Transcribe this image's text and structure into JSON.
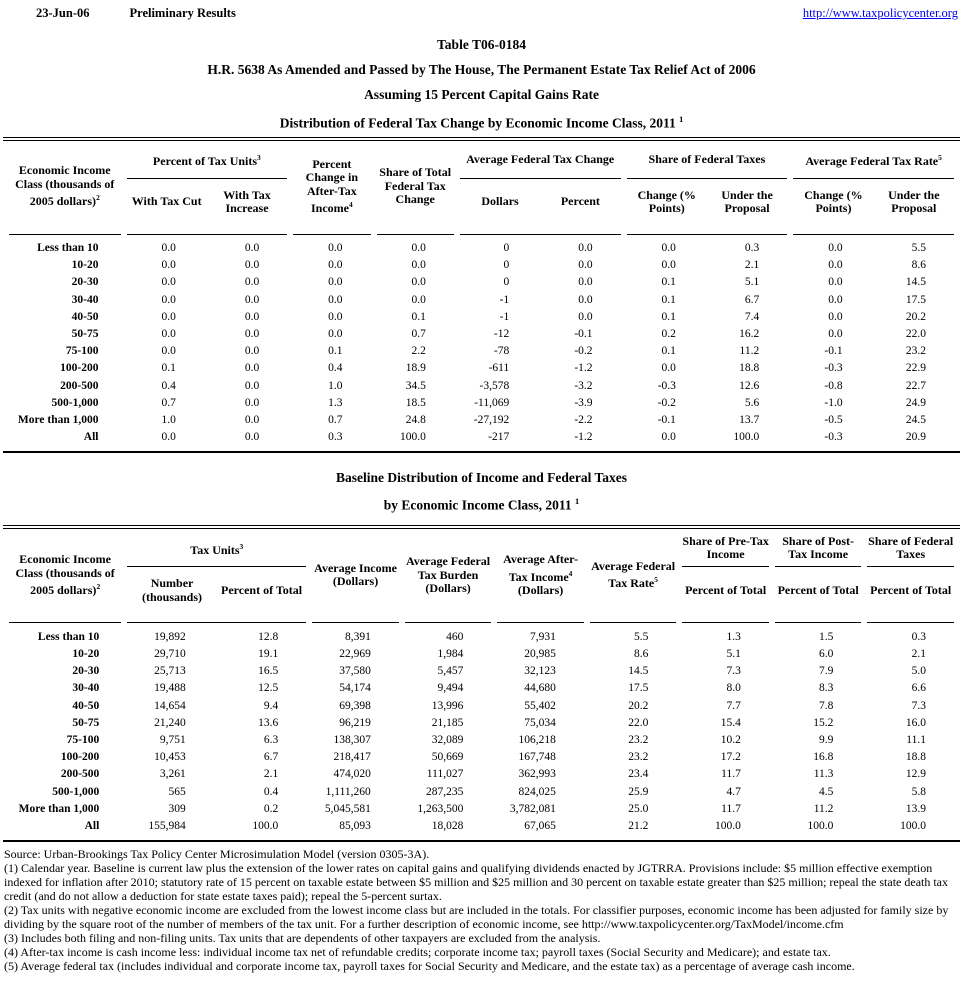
{
  "page": {
    "date": "23-Jun-06",
    "status": "Preliminary Results",
    "url": "http://www.taxpolicycenter.org"
  },
  "title": {
    "line1": "Table T06-0184",
    "line2": "H.R. 5638 As Amended and Passed by The House, The Permanent Estate Tax Relief Act of 2006",
    "line3": "Assuming 15 Percent Capital Gains Rate",
    "line4": {
      "pre": "Distribution of Federal Tax Change by Economic Income Class, 2011 ",
      "sup": "1"
    }
  },
  "table1": {
    "stub": {
      "pre": "Economic Income Class (thousands of 2005 dollars)",
      "sup": "2"
    },
    "groups": {
      "tax_units": {
        "label": {
          "pre": "Percent of Tax Units",
          "sup": "3"
        },
        "sub1": "With Tax Cut",
        "sub2": "With Tax Increase"
      },
      "pct_change": {
        "pre": "Percent Change in After-Tax Income",
        "sup": "4"
      },
      "share_total": "Share of Total Federal Tax Change",
      "avg_change": {
        "label": "Average Federal Tax Change",
        "sub1": "Dollars",
        "sub2": "Percent"
      },
      "share_taxes": {
        "label": "Share of Federal Taxes",
        "sub1": "Change (% Points)",
        "sub2": "Under the Proposal"
      },
      "avg_rate": {
        "label": {
          "pre": "Average Federal Tax Rate",
          "sup": "5"
        },
        "sub1": "Change (% Points)",
        "sub2": "Under the Proposal"
      }
    },
    "rows": [
      {
        "label": "Less than 10",
        "values": [
          "0.0",
          "0.0",
          "0.0",
          "0.0",
          "0",
          "0.0",
          "0.0",
          "0.3",
          "0.0",
          "5.5"
        ]
      },
      {
        "label": "10-20",
        "values": [
          "0.0",
          "0.0",
          "0.0",
          "0.0",
          "0",
          "0.0",
          "0.0",
          "2.1",
          "0.0",
          "8.6"
        ]
      },
      {
        "label": "20-30",
        "values": [
          "0.0",
          "0.0",
          "0.0",
          "0.0",
          "0",
          "0.0",
          "0.1",
          "5.1",
          "0.0",
          "14.5"
        ]
      },
      {
        "label": "30-40",
        "values": [
          "0.0",
          "0.0",
          "0.0",
          "0.0",
          "-1",
          "0.0",
          "0.1",
          "6.7",
          "0.0",
          "17.5"
        ]
      },
      {
        "label": "40-50",
        "values": [
          "0.0",
          "0.0",
          "0.0",
          "0.1",
          "-1",
          "0.0",
          "0.1",
          "7.4",
          "0.0",
          "20.2"
        ]
      },
      {
        "label": "50-75",
        "values": [
          "0.0",
          "0.0",
          "0.0",
          "0.7",
          "-12",
          "-0.1",
          "0.2",
          "16.2",
          "0.0",
          "22.0"
        ]
      },
      {
        "label": "75-100",
        "values": [
          "0.0",
          "0.0",
          "0.1",
          "2.2",
          "-78",
          "-0.2",
          "0.1",
          "11.2",
          "-0.1",
          "23.2"
        ]
      },
      {
        "label": "100-200",
        "values": [
          "0.1",
          "0.0",
          "0.4",
          "18.9",
          "-611",
          "-1.2",
          "0.0",
          "18.8",
          "-0.3",
          "22.9"
        ]
      },
      {
        "label": "200-500",
        "values": [
          "0.4",
          "0.0",
          "1.0",
          "34.5",
          "-3,578",
          "-3.2",
          "-0.3",
          "12.6",
          "-0.8",
          "22.7"
        ]
      },
      {
        "label": "500-1,000",
        "values": [
          "0.7",
          "0.0",
          "1.3",
          "18.5",
          "-11,069",
          "-3.9",
          "-0.2",
          "5.6",
          "-1.0",
          "24.9"
        ]
      },
      {
        "label": "More than 1,000",
        "values": [
          "1.0",
          "0.0",
          "0.7",
          "24.8",
          "-27,192",
          "-2.2",
          "-0.1",
          "13.7",
          "-0.5",
          "24.5"
        ]
      },
      {
        "label": "All",
        "values": [
          "0.0",
          "0.0",
          "0.3",
          "100.0",
          "-217",
          "-1.2",
          "0.0",
          "100.0",
          "-0.3",
          "20.9"
        ]
      }
    ]
  },
  "table2_title": {
    "line1": "Baseline Distribution of Income and Federal Taxes",
    "line2": {
      "pre": "by Economic Income Class, 2011 ",
      "sup": "1"
    }
  },
  "table2": {
    "stub": {
      "pre": "Economic Income Class (thousands of 2005 dollars)",
      "sup": "2"
    },
    "groups": {
      "tax_units": {
        "label": {
          "pre": "Tax Units",
          "sup": "3"
        },
        "sub1": "Number (thousands)",
        "sub2": "Percent of Total"
      },
      "avg_income": "Average Income (Dollars)",
      "avg_burden": "Average Federal Tax Burden (Dollars)",
      "avg_after_tax": {
        "pre": "Average After-Tax Income",
        "sup": "4",
        "post": " (Dollars)"
      },
      "avg_rate": {
        "pre": "Average Federal Tax Rate",
        "sup": "5"
      },
      "share_pre": {
        "label": "Share of Pre-Tax Income",
        "sub1": "Percent of Total"
      },
      "share_post": {
        "label": "Share of Post-Tax Income",
        "sub1": "Percent of Total"
      },
      "share_fed": {
        "label": "Share of Federal Taxes",
        "sub1": "Percent of Total"
      }
    },
    "rows": [
      {
        "label": "Less than 10",
        "values": [
          "19,892",
          "12.8",
          "8,391",
          "460",
          "7,931",
          "5.5",
          "1.3",
          "1.5",
          "0.3"
        ]
      },
      {
        "label": "10-20",
        "values": [
          "29,710",
          "19.1",
          "22,969",
          "1,984",
          "20,985",
          "8.6",
          "5.1",
          "6.0",
          "2.1"
        ]
      },
      {
        "label": "20-30",
        "values": [
          "25,713",
          "16.5",
          "37,580",
          "5,457",
          "32,123",
          "14.5",
          "7.3",
          "7.9",
          "5.0"
        ]
      },
      {
        "label": "30-40",
        "values": [
          "19,488",
          "12.5",
          "54,174",
          "9,494",
          "44,680",
          "17.5",
          "8.0",
          "8.3",
          "6.6"
        ]
      },
      {
        "label": "40-50",
        "values": [
          "14,654",
          "9.4",
          "69,398",
          "13,996",
          "55,402",
          "20.2",
          "7.7",
          "7.8",
          "7.3"
        ]
      },
      {
        "label": "50-75",
        "values": [
          "21,240",
          "13.6",
          "96,219",
          "21,185",
          "75,034",
          "22.0",
          "15.4",
          "15.2",
          "16.0"
        ]
      },
      {
        "label": "75-100",
        "values": [
          "9,751",
          "6.3",
          "138,307",
          "32,089",
          "106,218",
          "23.2",
          "10.2",
          "9.9",
          "11.1"
        ]
      },
      {
        "label": "100-200",
        "values": [
          "10,453",
          "6.7",
          "218,417",
          "50,669",
          "167,748",
          "23.2",
          "17.2",
          "16.8",
          "18.8"
        ]
      },
      {
        "label": "200-500",
        "values": [
          "3,261",
          "2.1",
          "474,020",
          "111,027",
          "362,993",
          "23.4",
          "11.7",
          "11.3",
          "12.9"
        ]
      },
      {
        "label": "500-1,000",
        "values": [
          "565",
          "0.4",
          "1,111,260",
          "287,235",
          "824,025",
          "25.9",
          "4.7",
          "4.5",
          "5.8"
        ]
      },
      {
        "label": "More than 1,000",
        "values": [
          "309",
          "0.2",
          "5,045,581",
          "1,263,500",
          "3,782,081",
          "25.0",
          "11.7",
          "11.2",
          "13.9"
        ]
      },
      {
        "label": "All",
        "values": [
          "155,984",
          "100.0",
          "85,093",
          "18,028",
          "67,065",
          "21.2",
          "100.0",
          "100.0",
          "100.0"
        ]
      }
    ]
  },
  "footnotes": [
    "Source: Urban-Brookings Tax Policy Center Microsimulation Model (version 0305-3A).",
    "(1) Calendar year. Baseline is current law plus the extension of the lower rates on capital gains and qualifying dividends enacted by JGTRRA.  Provisions include: $5 million effective exemption indexed for inflation after 2010;  statutory rate of 15 percent on taxable estate between $5 million and $25 million and 30 percent on taxable estate greater than $25 million; repeal the state death tax credit (and do not allow a deduction for state estate taxes paid); repeal the 5-percent surtax.",
    "(2) Tax units with negative economic income are excluded from the lowest income class but are included in the totals. For classifier purposes, economic income has been adjusted for family size by dividing by the square root of the number of members of the tax unit. For a further description of economic income, see http://www.taxpolicycenter.org/TaxModel/income.cfm",
    "(3) Includes both filing and non-filing units.  Tax units that are dependents of other taxpayers are excluded from the analysis.",
    "(4) After-tax income is cash income less: individual income tax net of refundable credits; corporate income tax; payroll taxes (Social Security and Medicare); and estate tax.",
    "(5) Average federal tax (includes individual and corporate income tax, payroll taxes for Social Security and Medicare, and the estate tax) as a percentage of average cash income."
  ]
}
